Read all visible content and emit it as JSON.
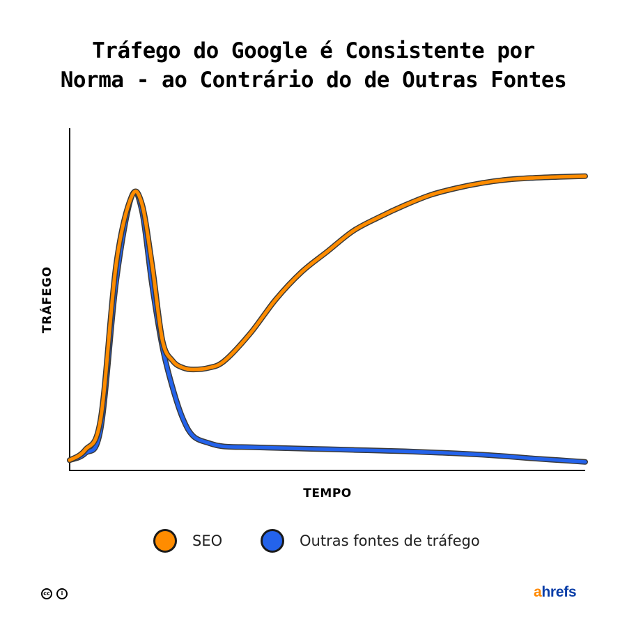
{
  "title_lines": [
    "Tráfego do Google é Consistente por",
    "Norma - ao Contrário do de Outras Fontes"
  ],
  "chart_data": {
    "type": "line",
    "title": "Tráfego do Google é Consistente por Norma - ao Contrário do de Outras Fontes",
    "xlabel": "TEMPO",
    "ylabel": "TRÁFEGO",
    "xlim": [
      0,
      100
    ],
    "ylim": [
      0,
      100
    ],
    "x": [
      0,
      3,
      6,
      9,
      12,
      14,
      16,
      18,
      20,
      22,
      24,
      27,
      30,
      35,
      40,
      45,
      50,
      55,
      60,
      65,
      70,
      75,
      80,
      85,
      90,
      95,
      100
    ],
    "series": [
      {
        "name": "SEO",
        "color": "#ff8c00",
        "values": [
          3,
          6,
          15,
          60,
          80,
          78,
          60,
          38,
          32,
          30,
          29.5,
          30,
          32,
          40,
          50,
          58,
          64,
          70,
          74,
          77.5,
          80.5,
          82.5,
          84,
          85,
          85.5,
          85.8,
          86
        ]
      },
      {
        "name": "Outras fontes de tráfego",
        "color": "#2463eb",
        "values": [
          3,
          5,
          12,
          55,
          80,
          76,
          54,
          36,
          24,
          15,
          10,
          8,
          7,
          6.8,
          6.6,
          6.4,
          6.2,
          6.0,
          5.8,
          5.6,
          5.3,
          5.0,
          4.6,
          4.1,
          3.5,
          3.0,
          2.5
        ]
      }
    ],
    "grid": false,
    "legend_position": "bottom"
  },
  "legend": [
    {
      "label": "SEO",
      "color": "#ff8c00"
    },
    {
      "label": "Outras fontes de tráfego",
      "color": "#2463eb"
    }
  ],
  "footer": {
    "license_icons": [
      "creative-commons-icon",
      "attribution-icon"
    ],
    "license_glyphs": [
      "cc",
      "i"
    ],
    "logo_a": "a",
    "logo_rest": "hrefs",
    "logo_colors": {
      "a": "#ff8800",
      "rest": "#0a3ea8"
    }
  }
}
